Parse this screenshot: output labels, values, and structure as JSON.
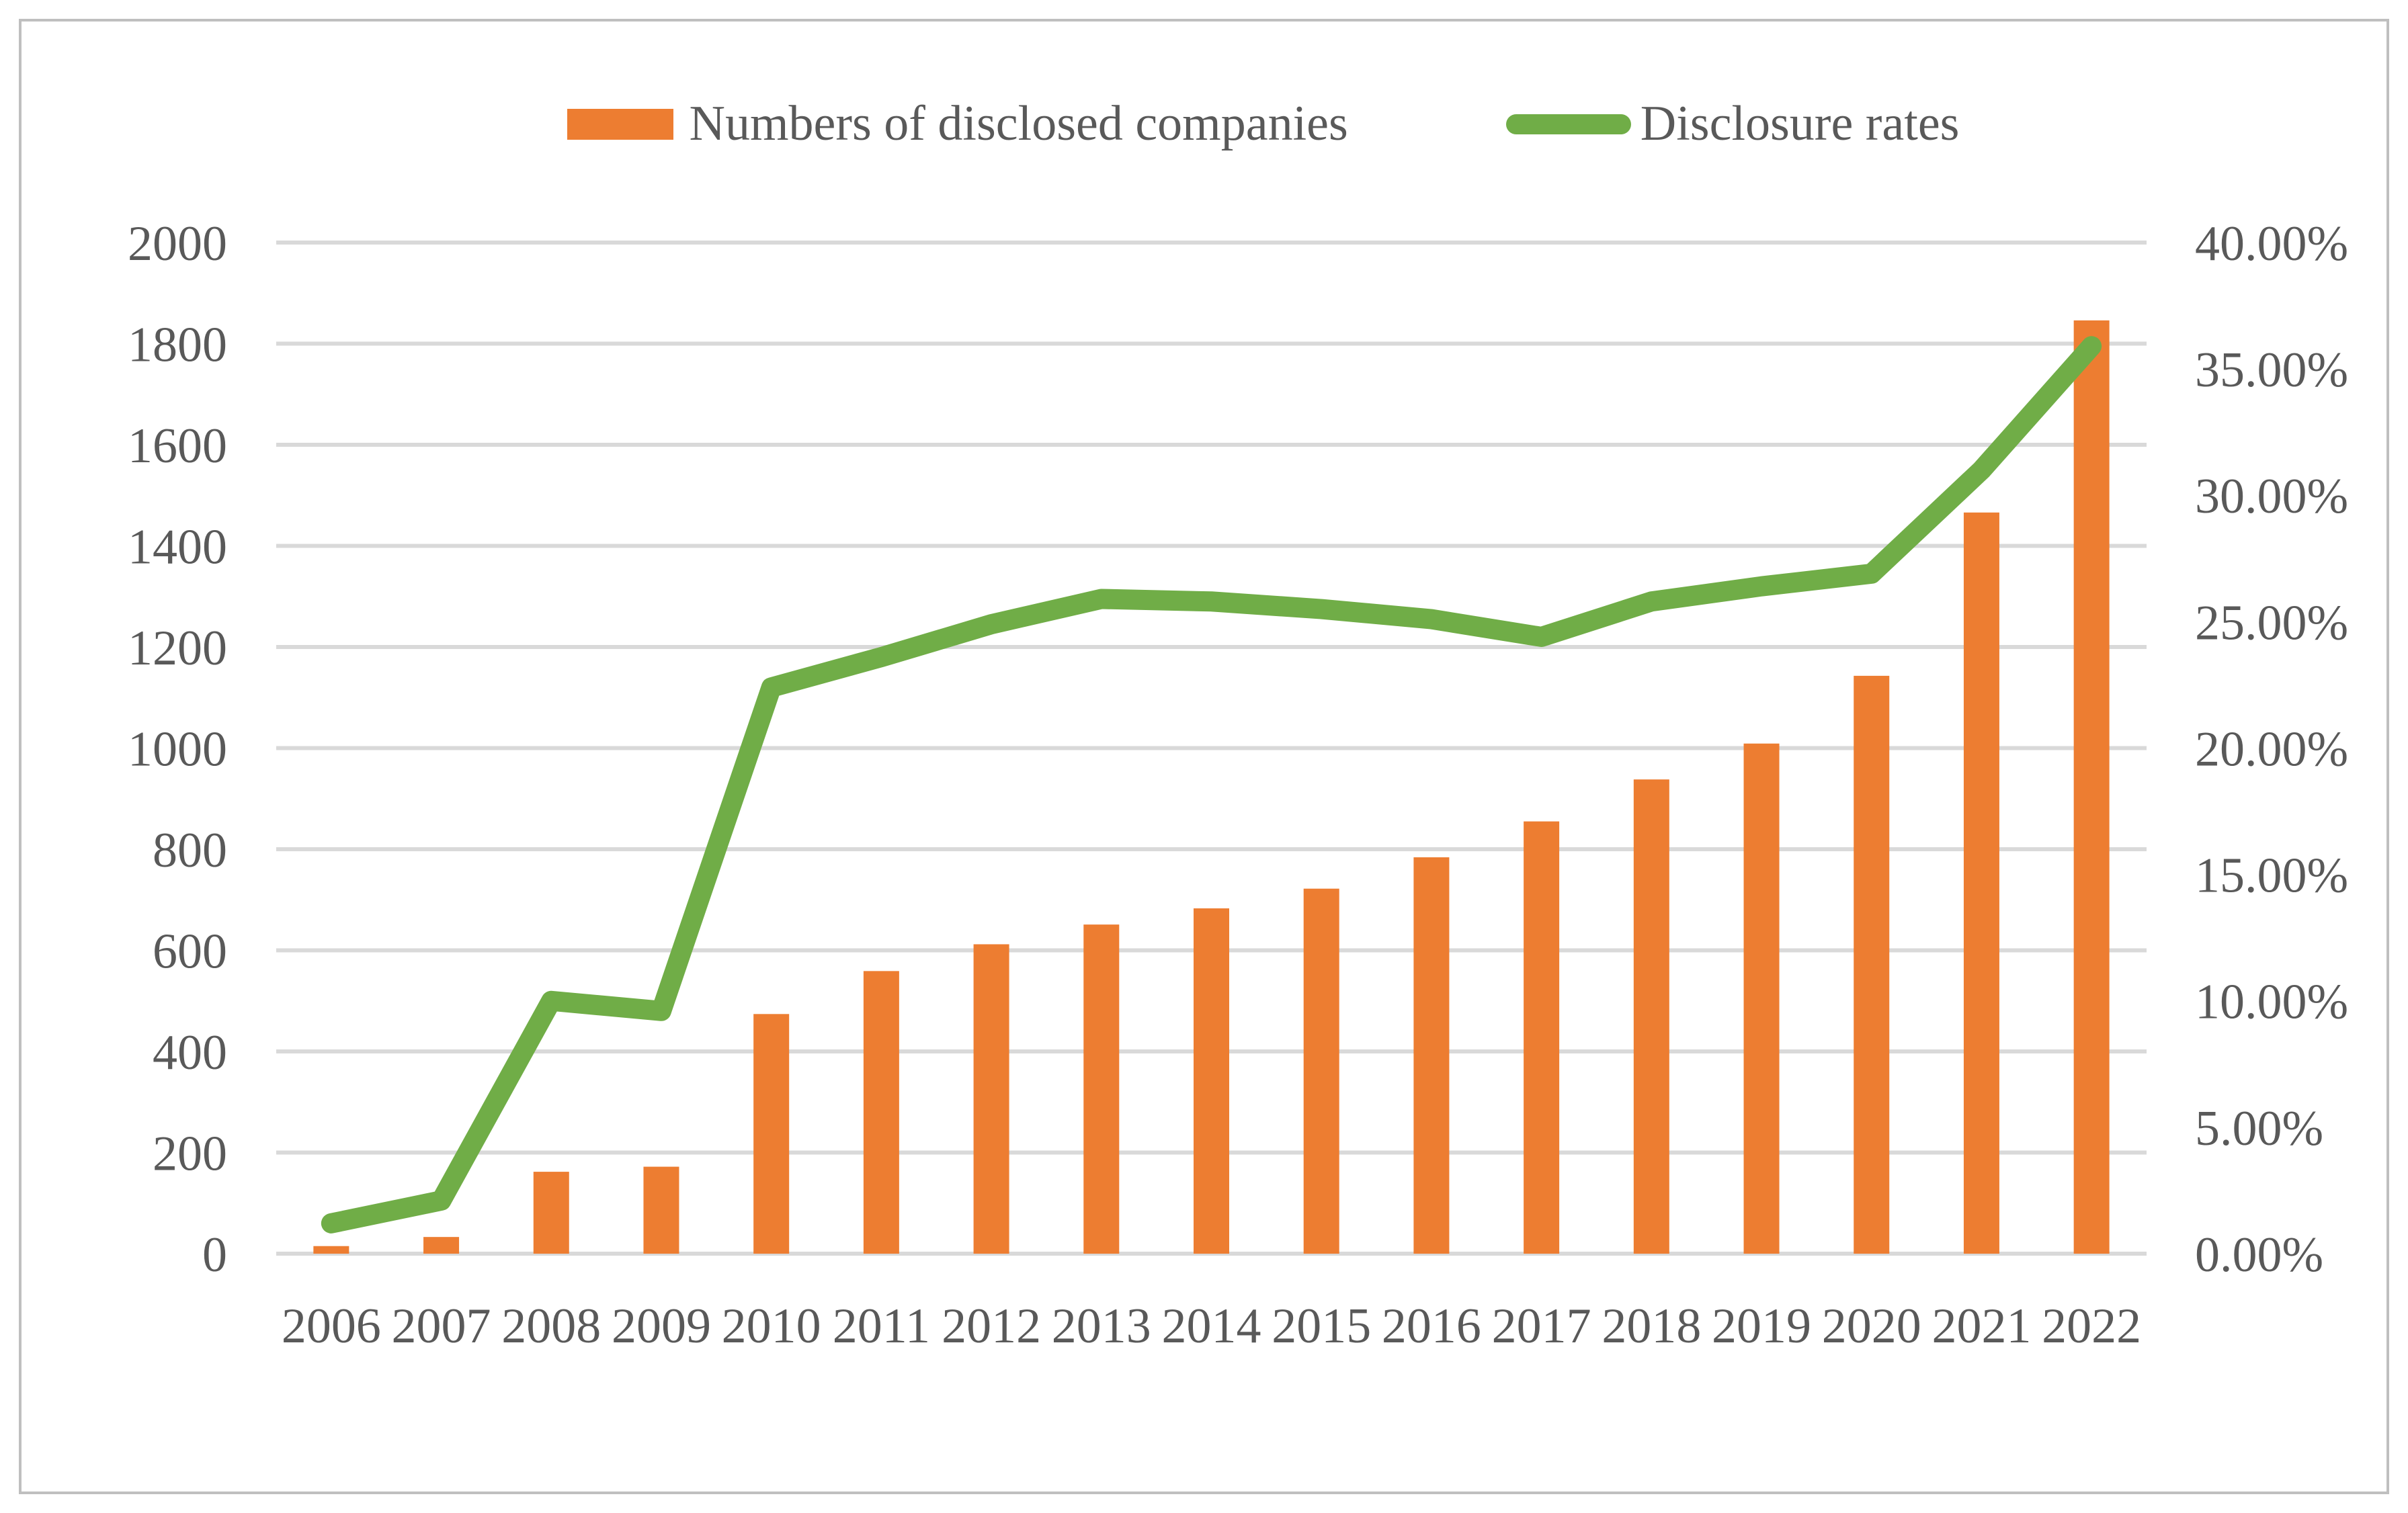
{
  "figure": {
    "background": "#FFFFFF",
    "border_color": "#BFBFBF"
  },
  "chart_data": {
    "type": "combo",
    "title": "",
    "categories": [
      "2006",
      "2007",
      "2008",
      "2009",
      "2010",
      "2011",
      "2012",
      "2013",
      "2014",
      "2015",
      "2016",
      "2017",
      "2018",
      "2019",
      "2020",
      "2021",
      "2022"
    ],
    "series": [
      {
        "name": "Numbers of disclosed companies",
        "type": "bar",
        "axis": "left",
        "color": "#ED7D31",
        "values": [
          15,
          33,
          162,
          172,
          474,
          559,
          612,
          651,
          683,
          722,
          784,
          855,
          938,
          1009,
          1143,
          1466,
          1846
        ]
      },
      {
        "name": "Disclosure rates",
        "type": "line",
        "axis": "right",
        "color": "#70AD47",
        "values": [
          1.2,
          2.1,
          10.0,
          9.6,
          22.4,
          23.6,
          24.9,
          25.9,
          25.8,
          25.5,
          25.1,
          24.4,
          25.8,
          26.4,
          26.9,
          31.0,
          35.9
        ]
      }
    ],
    "left_axis": {
      "min": 0,
      "max": 2000,
      "step": 200,
      "tick_labels": [
        "0",
        "200",
        "400",
        "600",
        "800",
        "1000",
        "1200",
        "1400",
        "1600",
        "1800",
        "2000"
      ]
    },
    "right_axis": {
      "min": 0,
      "max": 40,
      "step": 5,
      "tick_labels": [
        "0.00%",
        "5.00%",
        "10.00%",
        "15.00%",
        "20.00%",
        "25.00%",
        "30.00%",
        "35.00%",
        "40.00%"
      ]
    },
    "grid": true,
    "legend_position": "top",
    "colors": {
      "gridline": "#D9D9D9",
      "tick_text": "#595959",
      "border": "#BFBFBF"
    }
  }
}
